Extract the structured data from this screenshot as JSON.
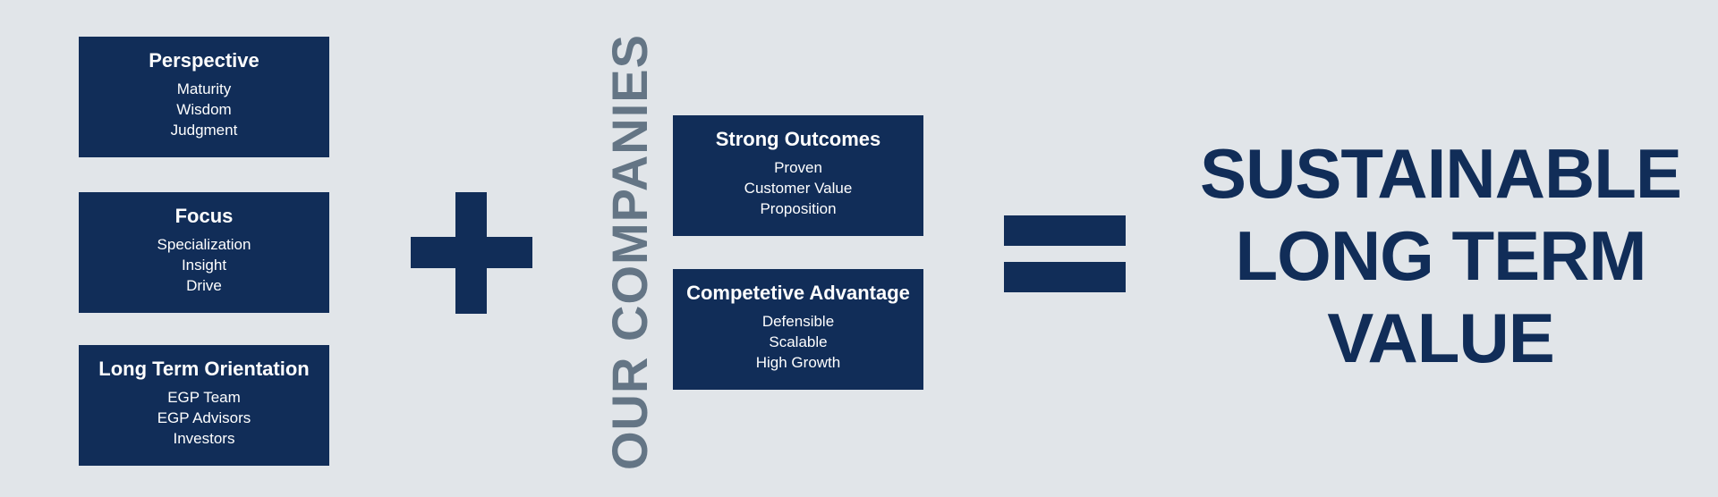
{
  "left_boxes": [
    {
      "title": "Perspective",
      "lines": [
        "Maturity",
        "Wisdom",
        "Judgment"
      ]
    },
    {
      "title": "Focus",
      "lines": [
        "Specialization",
        "Insight",
        "Drive"
      ]
    },
    {
      "title": "Long Term Orientation",
      "lines": [
        "EGP Team",
        "EGP Advisors",
        "Investors"
      ]
    }
  ],
  "operator_plus": "+",
  "vertical_label": "OUR COMPANIES",
  "right_boxes": [
    {
      "title": "Strong Outcomes",
      "lines": [
        "Proven",
        "Customer Value",
        "Proposition"
      ]
    },
    {
      "title": "Competetive Advantage",
      "lines": [
        "Defensible",
        "Scalable",
        "High Growth"
      ]
    }
  ],
  "operator_equals": "=",
  "result_lines": [
    "SUSTAINABLE",
    "LONG TERM",
    "VALUE"
  ],
  "colors": {
    "background": "#e1e5e9",
    "box_fill": "#112d58",
    "box_text": "#ffffff",
    "vertical_label": "#647585",
    "result_text": "#112d58"
  }
}
